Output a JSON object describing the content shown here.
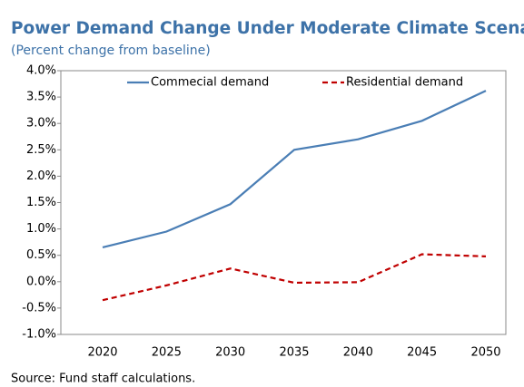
{
  "chart_data": {
    "type": "line",
    "title": "Power Demand Change Under Moderate Climate Scenario",
    "subtitle": "(Percent change from baseline)",
    "source": "Source: Fund staff calculations.",
    "categories": [
      "2020",
      "2025",
      "2030",
      "2035",
      "2040",
      "2045",
      "2050"
    ],
    "series": [
      {
        "name": "Commecial demand",
        "color": "#4a7eb5",
        "dash": false,
        "values": [
          0.65,
          0.95,
          1.47,
          2.5,
          2.7,
          3.05,
          3.62
        ]
      },
      {
        "name": "Residential demand",
        "color": "#c00000",
        "dash": true,
        "values": [
          -0.35,
          -0.07,
          0.25,
          -0.02,
          -0.01,
          0.52,
          0.48
        ]
      }
    ],
    "ylim": [
      -1.0,
      4.0
    ],
    "yticks": [
      {
        "value": -1.0,
        "label": "-1.0%"
      },
      {
        "value": -0.5,
        "label": "-0.5%"
      },
      {
        "value": 0.0,
        "label": "0.0%"
      },
      {
        "value": 0.5,
        "label": "0.5%"
      },
      {
        "value": 1.0,
        "label": "1.0%"
      },
      {
        "value": 1.5,
        "label": "1.5%"
      },
      {
        "value": 2.0,
        "label": "2.0%"
      },
      {
        "value": 2.5,
        "label": "2.5%"
      },
      {
        "value": 3.0,
        "label": "3.0%"
      },
      {
        "value": 3.5,
        "label": "3.5%"
      },
      {
        "value": 4.0,
        "label": "4.0%"
      }
    ],
    "legend": "top",
    "grid": false
  }
}
